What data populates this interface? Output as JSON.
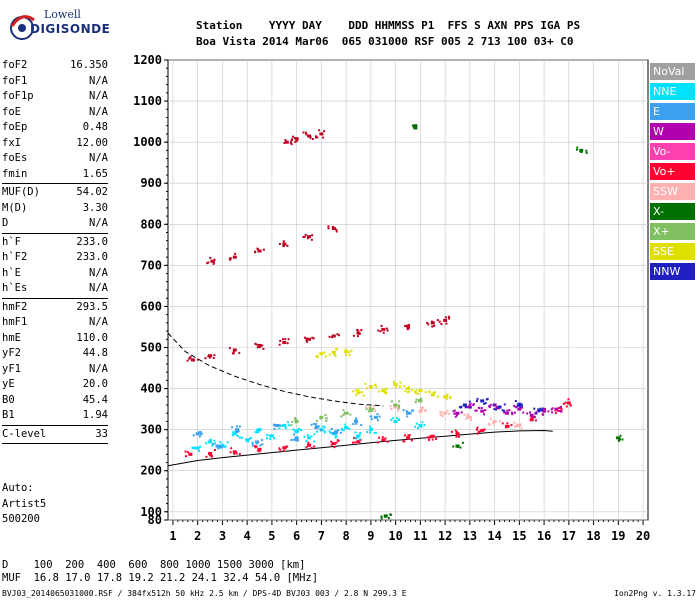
{
  "logo": {
    "line1": "Lowell",
    "line2": "DIGISONDE"
  },
  "header": {
    "line1": "Station    YYYY DAY    DDD HHMMSS P1  FFS S AXN PPS IGA PS",
    "line2": "Boa Vista 2014 Mar06  065 031000 RSF 005 2 713 100 03+ C0"
  },
  "params": {
    "group1": [
      {
        "k": "foF2",
        "v": "16.350"
      },
      {
        "k": "foF1",
        "v": "N/A"
      },
      {
        "k": "foF1p",
        "v": "N/A"
      },
      {
        "k": "foE",
        "v": "N/A"
      },
      {
        "k": "foEp",
        "v": "0.48"
      },
      {
        "k": "fxI",
        "v": "12.00"
      },
      {
        "k": "foEs",
        "v": "N/A"
      },
      {
        "k": "fmin",
        "v": "1.65"
      }
    ],
    "group2": [
      {
        "k": "MUF(D)",
        "v": "54.02"
      },
      {
        "k": "M(D)",
        "v": "3.30"
      },
      {
        "k": "D",
        "v": "N/A"
      }
    ],
    "group3": [
      {
        "k": "h`F",
        "v": "233.0"
      },
      {
        "k": "h`F2",
        "v": "233.0"
      },
      {
        "k": "h`E",
        "v": "N/A"
      },
      {
        "k": "h`Es",
        "v": "N/A"
      }
    ],
    "group4": [
      {
        "k": "hmF2",
        "v": "293.5"
      },
      {
        "k": "hmF1",
        "v": "N/A"
      },
      {
        "k": "hmE",
        "v": "110.0"
      },
      {
        "k": "yF2",
        "v": "44.8"
      },
      {
        "k": "yF1",
        "v": "N/A"
      },
      {
        "k": "yE",
        "v": "20.0"
      },
      {
        "k": "B0",
        "v": "45.4"
      },
      {
        "k": "B1",
        "v": "1.94"
      }
    ],
    "group5": [
      {
        "k": "C-level",
        "v": "33"
      }
    ]
  },
  "auto": {
    "line1": "Auto:",
    "line2": "Artist5",
    "line3": "500200"
  },
  "legend": [
    {
      "label": "NoVal",
      "color": "#a0a0a0"
    },
    {
      "label": "NNE",
      "color": "#00e0ff"
    },
    {
      "label": "E",
      "color": "#3aa0f0"
    },
    {
      "label": "W",
      "color": "#b000b0"
    },
    {
      "label": "Vo-",
      "color": "#ff3fb0"
    },
    {
      "label": "Vo+",
      "color": "#ff0030"
    },
    {
      "label": "SSW",
      "color": "#ffb0b0"
    },
    {
      "label": "X-",
      "color": "#007000"
    },
    {
      "label": "X+",
      "color": "#80c060"
    },
    {
      "label": "SSE",
      "color": "#e0e000"
    },
    {
      "label": "NNW",
      "color": "#2020c0"
    }
  ],
  "footer": {
    "line1": "D    100  200  400  600  800 1000 1500 3000 [km]",
    "line2": "MUF  16.8 17.0 17.8 19.2 21.2 24.1 32.4 54.0 [MHz]",
    "file": "BVJ03_2014065031000.RSF / 384fx512h 50 kHz 2.5 km / DPS-4D BVJ03 003 / 2.8 N 299.3 E",
    "version": "Ion2Png v. 1.3.17"
  },
  "chart_data": {
    "type": "scatter",
    "xlim": [
      0.8,
      20.2
    ],
    "ylim": [
      80,
      1200
    ],
    "x_ticks": [
      1,
      2,
      3,
      4,
      5,
      6,
      7,
      8,
      9,
      10,
      11,
      12,
      13,
      14,
      15,
      16,
      17,
      18,
      19,
      20
    ],
    "y_ticks": [
      80,
      100,
      200,
      300,
      400,
      500,
      600,
      700,
      800,
      900,
      1000,
      1100,
      1200
    ],
    "grid": true,
    "series": [
      {
        "name": "Vo+",
        "color": "#ff0030",
        "x": [
          1.7,
          2.5,
          3.5,
          4.5,
          5.5,
          6.5,
          7.5,
          8.5,
          9.5,
          10.5,
          11.5,
          12.5,
          13.5,
          14.5,
          15.5,
          16.5,
          17.0
        ],
        "y": [
          240,
          242,
          246,
          252,
          256,
          262,
          266,
          271,
          275,
          280,
          284,
          290,
          298,
          308,
          324,
          348,
          365
        ]
      },
      {
        "name": "Vo+",
        "color": "#c00020",
        "x": [
          1.8,
          2.5,
          3.5,
          4.5,
          5.5,
          6.5,
          7.5,
          8.5,
          9.5,
          10.5,
          11.5,
          12.0
        ],
        "y": [
          470,
          480,
          494,
          505,
          512,
          520,
          528,
          535,
          544,
          552,
          560,
          566
        ]
      },
      {
        "name": "Vo+",
        "color": "#c00020",
        "x": [
          2.6,
          3.5,
          4.5,
          5.5,
          6.5,
          7.5
        ],
        "y": [
          710,
          720,
          735,
          752,
          770,
          790
        ]
      },
      {
        "name": "Vo+",
        "color": "#c00020",
        "x": [
          5.6,
          6.0,
          6.5,
          7.0
        ],
        "y": [
          1000,
          1008,
          1015,
          1020
        ]
      },
      {
        "name": "NNE",
        "color": "#00e0ff",
        "x": [
          2,
          2.5,
          3,
          3.5,
          4,
          4.5,
          5,
          5.5,
          6,
          6.5,
          7,
          7.5,
          8,
          8.5,
          9,
          10,
          11
        ],
        "y": [
          255,
          270,
          262,
          290,
          275,
          300,
          285,
          310,
          295,
          280,
          300,
          290,
          305,
          285,
          300,
          320,
          310
        ]
      },
      {
        "name": "E",
        "color": "#3aa0f0",
        "x": [
          2,
          2.8,
          3.6,
          4.4,
          5.2,
          6,
          6.8,
          7.6,
          8.4,
          9.2,
          10.5
        ],
        "y": [
          290,
          260,
          300,
          270,
          310,
          280,
          305,
          295,
          320,
          330,
          340
        ]
      },
      {
        "name": "W",
        "color": "#b000b0",
        "x": [
          12.5,
          13,
          13.5,
          14,
          14.5,
          15,
          15.5,
          16,
          16.5
        ],
        "y": [
          340,
          355,
          345,
          360,
          340,
          350,
          335,
          345,
          350
        ]
      },
      {
        "name": "SSE",
        "color": "#e0e000",
        "x": [
          8.5,
          9,
          9.5,
          10,
          10.5,
          11,
          11.5,
          12,
          7.0,
          7.5,
          8.0
        ],
        "y": [
          390,
          405,
          395,
          410,
          400,
          395,
          385,
          380,
          485,
          488,
          490
        ]
      },
      {
        "name": "SSW",
        "color": "#ffb0b0",
        "x": [
          9,
          10,
          11,
          12,
          13,
          14,
          15
        ],
        "y": [
          350,
          355,
          345,
          340,
          330,
          320,
          310
        ]
      },
      {
        "name": "NNW",
        "color": "#2020c0",
        "x": [
          12.8,
          13.5,
          14.2,
          15,
          15.8
        ],
        "y": [
          360,
          370,
          355,
          362,
          348
        ]
      },
      {
        "name": "X+",
        "color": "#80c060",
        "x": [
          6,
          7,
          8,
          9,
          10,
          11
        ],
        "y": [
          320,
          330,
          340,
          350,
          360,
          370
        ]
      },
      {
        "name": "X-",
        "color": "#007000",
        "x": [
          9.6,
          10.8,
          12.5,
          17.5,
          19
        ],
        "y": [
          90,
          1040,
          260,
          980,
          280
        ]
      }
    ],
    "profile": {
      "x": [
        0.8,
        2,
        3,
        4,
        5,
        6,
        7,
        8,
        9,
        10,
        11,
        12,
        13,
        14,
        15,
        16,
        16.35
      ],
      "y": [
        212,
        225,
        232,
        238,
        244,
        250,
        256,
        262,
        268,
        274,
        279,
        284,
        289,
        294,
        297,
        298,
        296
      ]
    },
    "dashed_curve": {
      "x": [
        0.8,
        1.5,
        2.5,
        3.5,
        4.5,
        5.5,
        6.5,
        7.5,
        8.5,
        9.5
      ],
      "y": [
        535,
        490,
        455,
        430,
        410,
        393,
        380,
        370,
        362,
        358
      ]
    }
  }
}
